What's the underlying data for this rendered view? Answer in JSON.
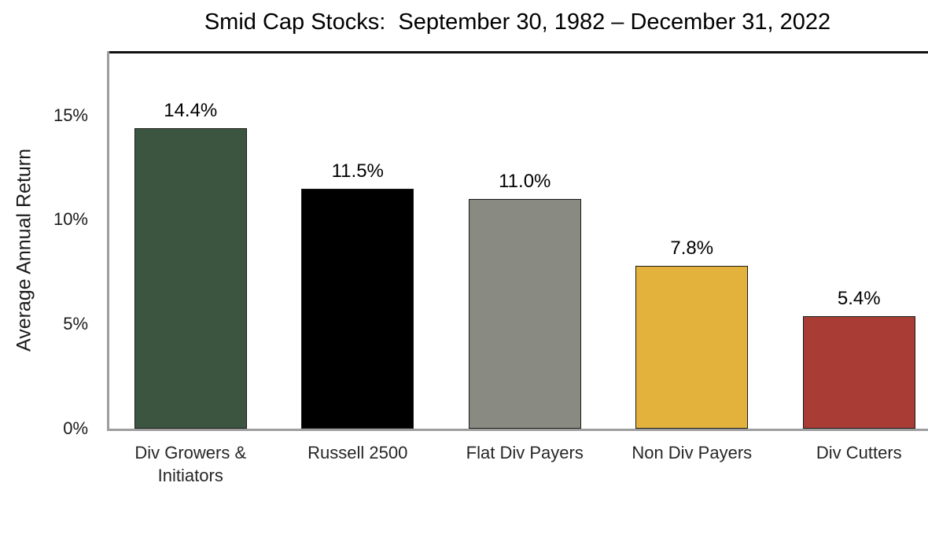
{
  "title": "Smid Cap Stocks:  September 30, 1982 – December 31, 2022",
  "chart_data": {
    "type": "bar",
    "title": "Smid Cap Stocks:  September 30, 1982 – December 31, 2022",
    "xlabel": "",
    "ylabel": "Average Annual Return",
    "ylim": [
      0,
      18
    ],
    "grid": false,
    "legend": "none",
    "categories": [
      "Div Growers &\nInitiators",
      "Russell 2500",
      "Flat Div Payers",
      "Non Div Payers",
      "Div Cutters"
    ],
    "values": [
      14.4,
      11.5,
      11.0,
      7.8,
      5.4
    ],
    "data_labels": [
      "14.4%",
      "11.5%",
      "11.0%",
      "7.8%",
      "5.4%"
    ],
    "bar_colors": [
      "#3B5541",
      "#000000",
      "#898B83",
      "#E3B23D",
      "#A93D36"
    ],
    "bar_outline_color": "#1a1a1a",
    "yticks": [
      {
        "value": 0,
        "label": "0%"
      },
      {
        "value": 5,
        "label": "5%"
      },
      {
        "value": 10,
        "label": "10%"
      },
      {
        "value": 15,
        "label": "15%"
      }
    ],
    "axis_colors": {
      "plot_top_border": "#111111",
      "y_axis_line": "#9e9e9e",
      "x_axis_line": "#9e9e9e"
    }
  }
}
